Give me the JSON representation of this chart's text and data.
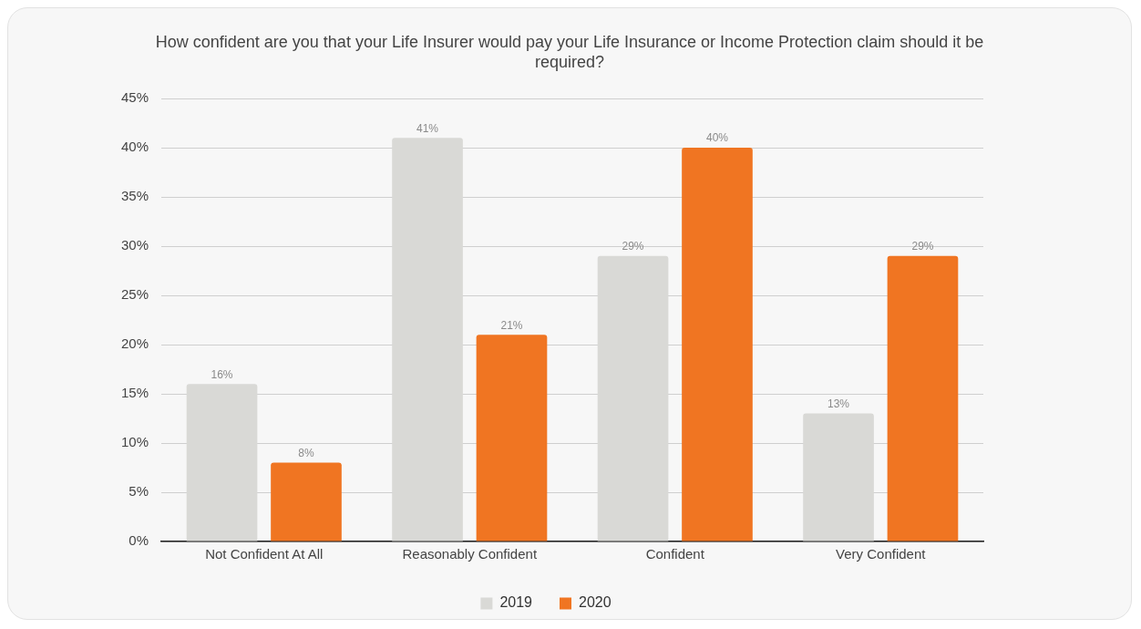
{
  "chart_data": {
    "type": "bar",
    "title": "How confident are you that your Life Insurer would pay your Life Insurance or Income Protection claim should it be required?",
    "categories": [
      "Not Confident At All",
      "Reasonably Confident",
      "Confident",
      "Very Confident"
    ],
    "series": [
      {
        "name": "2019",
        "color": "#d9d9d6",
        "values": [
          16,
          41,
          29,
          13
        ],
        "value_labels": [
          "16%",
          "41%",
          "29%",
          "13%"
        ]
      },
      {
        "name": "2020",
        "color": "#f07522",
        "values": [
          8,
          21,
          40,
          29
        ],
        "value_labels": [
          "8%",
          "21%",
          "40%",
          "29%"
        ]
      }
    ],
    "ylim": [
      0,
      45
    ],
    "yticks": [
      {
        "value": 0,
        "label": "0%"
      },
      {
        "value": 5,
        "label": "5%"
      },
      {
        "value": 10,
        "label": "10%"
      },
      {
        "value": 15,
        "label": "15%"
      },
      {
        "value": 20,
        "label": "20%"
      },
      {
        "value": 25,
        "label": "25%"
      },
      {
        "value": 30,
        "label": "30%"
      },
      {
        "value": 35,
        "label": "35%"
      },
      {
        "value": 40,
        "label": "40%"
      },
      {
        "value": 45,
        "label": "45%"
      }
    ],
    "grid": "y",
    "legend": "bottom"
  }
}
